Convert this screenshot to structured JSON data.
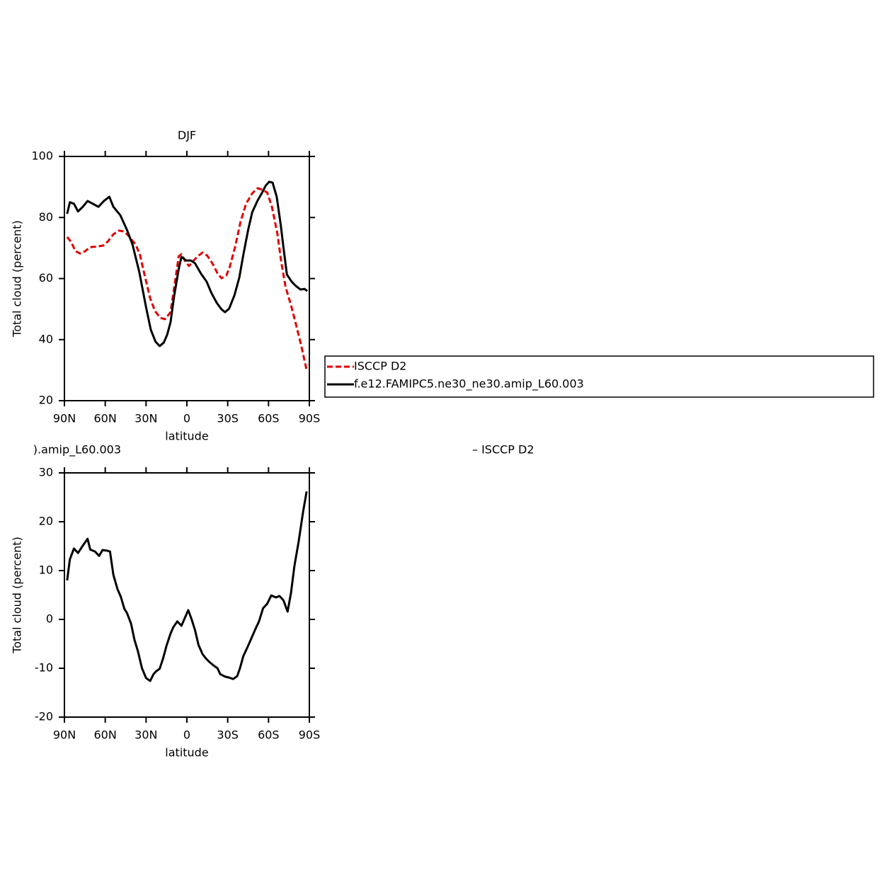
{
  "chart_data": [
    {
      "type": "line",
      "title": "DJF",
      "xlabel": "latitude",
      "ylabel": "Total cloud (percent)",
      "xlim": [
        90,
        -90
      ],
      "xticks": [
        {
          "value": 90,
          "label": "90N"
        },
        {
          "value": 60,
          "label": "60N"
        },
        {
          "value": 30,
          "label": "30N"
        },
        0,
        {
          "value": -30,
          "label": "30S"
        },
        {
          "value": -60,
          "label": "60S"
        },
        {
          "value": -90,
          "label": "90S"
        }
      ],
      "ylim": [
        20,
        100
      ],
      "yticks": [
        20,
        40,
        60,
        80,
        100
      ],
      "series": [
        {
          "name": "ISCCP D2",
          "color": "#e00000",
          "style": "dashed",
          "x": [
            88,
            85,
            82,
            78.5,
            75,
            71,
            66,
            61.5,
            58,
            54,
            50,
            46,
            42,
            37.5,
            34.5,
            31,
            27,
            23.5,
            19.5,
            16,
            12,
            9,
            6,
            4,
            1.5,
            -1.5,
            -4.5,
            -8,
            -11.5,
            -15,
            -19,
            -22.5,
            -25.5,
            -29,
            -31.5,
            -35.5,
            -39.5,
            -43.5,
            -48,
            -52,
            -55.5,
            -59,
            -62.5,
            -66.5,
            -69.5,
            -72.5,
            -76.5,
            -80,
            -84,
            -88
          ],
          "values": [
            73.6,
            72,
            69,
            68.2,
            68.9,
            70.3,
            70.5,
            70.8,
            72.2,
            74.5,
            75.7,
            75.4,
            73.6,
            71,
            67.8,
            61,
            53.6,
            49.4,
            47.1,
            46.7,
            49,
            58,
            67.3,
            68,
            65.9,
            64.1,
            65.7,
            67.3,
            68.5,
            67.5,
            64.8,
            61.7,
            60.1,
            61,
            63.8,
            70.5,
            78.7,
            84.5,
            87.9,
            89.6,
            89.1,
            88.2,
            83.5,
            74.7,
            65,
            57.3,
            51.3,
            45.3,
            38.1,
            30
          ]
        },
        {
          "name": "f.e12.FAMIPC5.ne30_ne30.amip_L60.003",
          "color": "#000000",
          "style": "solid",
          "x": [
            88,
            86,
            83,
            80,
            76.5,
            73,
            70,
            65,
            61,
            57,
            54,
            49,
            44,
            40,
            35,
            30,
            26.5,
            23,
            20,
            17,
            14.5,
            12,
            9.5,
            6,
            4,
            0.5,
            -3,
            -6,
            -10.5,
            -14.5,
            -18,
            -22,
            -25.5,
            -28,
            -31,
            -35,
            -38.5,
            -41.5,
            -45,
            -48,
            -52,
            -55,
            -58,
            -60.5,
            -63,
            -66,
            -69,
            -71,
            -73.5,
            -77,
            -80,
            -83.5,
            -86.5,
            -88.5
          ],
          "values": [
            81.2,
            85,
            84.5,
            82,
            83.5,
            85.4,
            84.7,
            83.5,
            85.4,
            86.8,
            83.5,
            80.8,
            75.9,
            71.2,
            62.2,
            50.6,
            43.2,
            39.3,
            37.9,
            39,
            41.6,
            45.7,
            53.9,
            63.1,
            67.1,
            65.9,
            65.9,
            65,
            61.5,
            59,
            55.3,
            52,
            49.9,
            49,
            50.1,
            54.6,
            60.3,
            67.8,
            75.9,
            81.7,
            85.6,
            87.9,
            90.5,
            91.7,
            91.4,
            86.8,
            77.5,
            70.1,
            61.3,
            59,
            57.6,
            56.4,
            56.6,
            55.9
          ]
        }
      ]
    },
    {
      "type": "line",
      "title_left": ").amip_L60.003",
      "title_right": "– ISCCP D2",
      "xlabel": "latitude",
      "ylabel": "Total cloud (percent)",
      "xlim": [
        90,
        -90
      ],
      "xticks": [
        {
          "value": 90,
          "label": "90N"
        },
        {
          "value": 60,
          "label": "60N"
        },
        {
          "value": 30,
          "label": "30N"
        },
        0,
        {
          "value": -30,
          "label": "30S"
        },
        {
          "value": -60,
          "label": "60S"
        },
        {
          "value": -90,
          "label": "90S"
        }
      ],
      "ylim": [
        -20,
        30
      ],
      "yticks": [
        -20,
        -10,
        0,
        10,
        20,
        30
      ],
      "series": [
        {
          "color": "#000000",
          "style": "solid",
          "x": [
            88,
            86,
            83,
            80,
            76.5,
            73,
            71,
            67.5,
            64.5,
            62,
            59,
            56.5,
            54,
            51,
            48.5,
            46,
            44,
            41,
            38.5,
            36,
            33,
            30,
            27,
            24.5,
            22.5,
            20,
            17.5,
            15,
            12,
            10,
            7,
            4,
            1.5,
            -1,
            -3.5,
            -6,
            -8.5,
            -11.5,
            -14,
            -16.5,
            -19.5,
            -22.5,
            -24.5,
            -28,
            -31,
            -34,
            -37,
            -39,
            -41.5,
            -45,
            -47.5,
            -50,
            -53,
            -56,
            -59,
            -62,
            -65.5,
            -68,
            -71,
            -74,
            -76.5,
            -79,
            -82,
            -85.5,
            -88
          ],
          "values": [
            8,
            12.3,
            14.5,
            13.6,
            15.1,
            16.5,
            14.3,
            13.9,
            13,
            14.2,
            14.1,
            13.9,
            9.1,
            6.2,
            4.6,
            2.2,
            1.3,
            -0.9,
            -4.2,
            -6.5,
            -10,
            -12,
            -12.6,
            -11.2,
            -10.6,
            -10.1,
            -8,
            -5.4,
            -2.9,
            -1.6,
            -0.4,
            -1.3,
            0.3,
            1.9,
            0,
            -2.2,
            -5.2,
            -7.1,
            -8,
            -8.7,
            -9.4,
            -10,
            -11.2,
            -11.7,
            -11.9,
            -12.2,
            -11.6,
            -10,
            -7.5,
            -5.4,
            -3.8,
            -2.2,
            -0.4,
            2.3,
            3.2,
            4.9,
            4.5,
            4.8,
            3.9,
            1.6,
            5.4,
            10.9,
            15.7,
            22.2,
            26.2
          ]
        }
      ]
    }
  ]
}
